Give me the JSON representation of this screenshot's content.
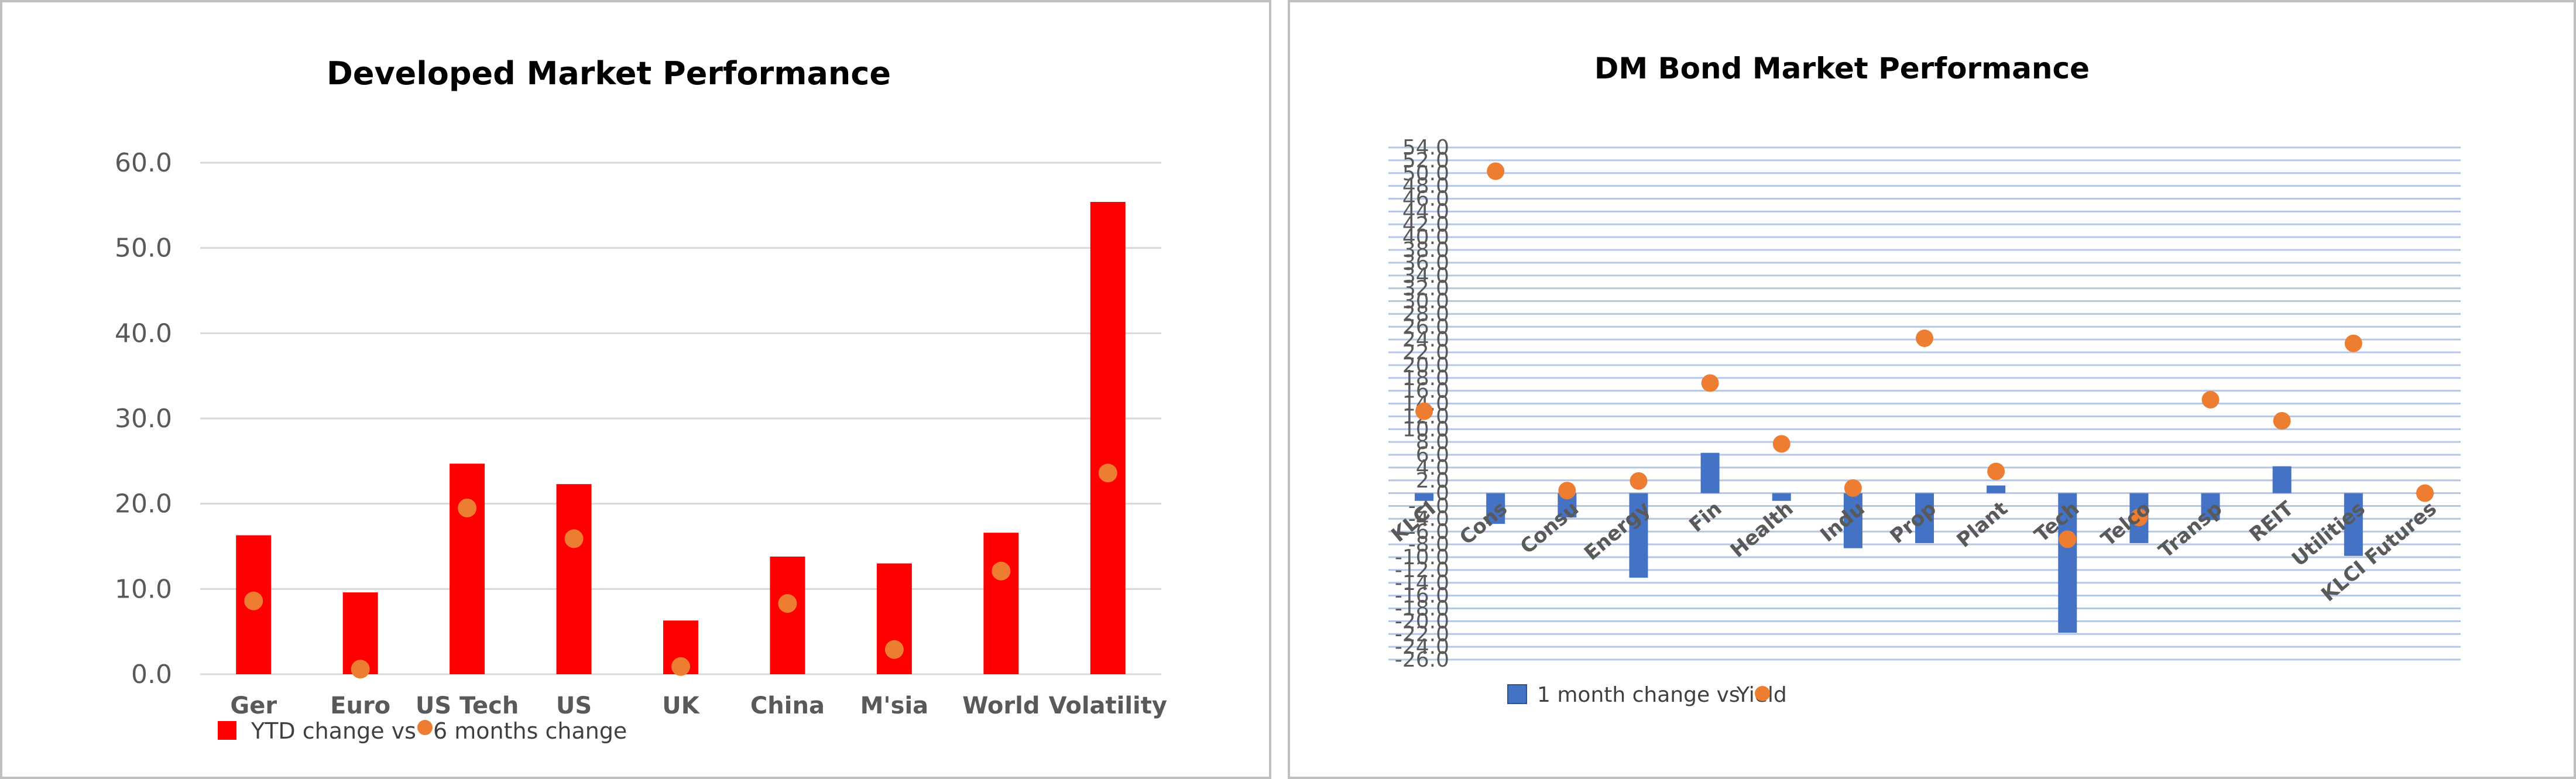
{
  "colors": {
    "left_bar": "#ff0000",
    "left_dot": "#ed7d31",
    "right_bar": "#4472c4",
    "right_dot": "#ed7d31",
    "grid": "#d9d9d9",
    "right_grid": "#b4c7e7"
  },
  "chart_data": [
    {
      "type": "bar",
      "title": "Developed Market Performance",
      "xlabel": "",
      "ylabel": "",
      "categories": [
        "Ger",
        "Euro",
        "US Tech",
        "US",
        "UK",
        "China",
        "M'sia",
        "World",
        "Volatility"
      ],
      "series": [
        {
          "name": "YTD change vs",
          "kind": "bar",
          "values": [
            16.3,
            9.6,
            24.7,
            22.3,
            6.3,
            13.8,
            13.0,
            16.6,
            55.4
          ]
        },
        {
          "name": "6 months change",
          "kind": "scatter",
          "values": [
            8.6,
            0.6,
            19.5,
            15.9,
            0.9,
            8.3,
            2.9,
            12.1,
            23.6
          ]
        }
      ],
      "ylim": [
        0,
        60
      ],
      "yticks": [
        "0.0",
        "10.0",
        "20.0",
        "30.0",
        "40.0",
        "50.0",
        "60.0"
      ],
      "grid": true,
      "legend": "bottom-left"
    },
    {
      "type": "bar",
      "title": "DM Bond Market Performance",
      "xlabel": "",
      "ylabel": "",
      "categories": [
        "KLCI",
        "Cons",
        "Consu",
        "Energy",
        "Fin",
        "Health",
        "Indu",
        "Prop",
        "Plant",
        "Tech",
        "Telco",
        "Transp",
        "REIT",
        "Utilities",
        "KLCI Futures"
      ],
      "series": [
        {
          "name": "1 month change vs",
          "kind": "bar",
          "values": [
            -1.2,
            -4.8,
            -3.8,
            -13.2,
            6.3,
            -1.2,
            -8.6,
            -7.8,
            1.2,
            -21.8,
            -7.8,
            -4.2,
            4.2,
            -9.8,
            0.0
          ]
        },
        {
          "name": "Yield",
          "kind": "scatter",
          "values": [
            12.8,
            50.3,
            0.4,
            1.9,
            17.2,
            7.7,
            0.8,
            24.2,
            3.4,
            -7.2,
            -3.8,
            14.6,
            11.3,
            23.4,
            0.0
          ]
        }
      ],
      "ylim": [
        -26,
        54
      ],
      "yticks": [
        "-26.0",
        "-24.0",
        "-22.0",
        "-20.0",
        "-18.0",
        "-16.0",
        "-14.0",
        "-12.0",
        "-10.0",
        "-8.0",
        "-6.0",
        "-4.0",
        "-2.0",
        "0",
        "2.0",
        "4.0",
        "6.0",
        "8.0",
        "10.0",
        "12.0",
        "14.0",
        "16.0",
        "18.0",
        "20.0",
        "22.0",
        "24.0",
        "26.0",
        "28.0",
        "30.0",
        "32.0",
        "34.0",
        "36.0",
        "38.0",
        "40.0",
        "42.0",
        "44.0",
        "46.0",
        "48.0",
        "50.0",
        "52.0",
        "54.0"
      ],
      "grid": true,
      "legend": "bottom-left"
    }
  ]
}
